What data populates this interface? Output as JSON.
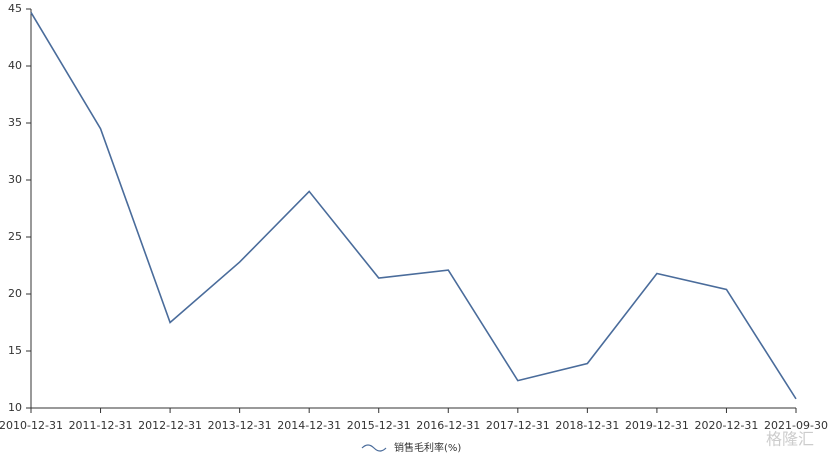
{
  "chart_data": {
    "type": "line",
    "categories": [
      "2010-12-31",
      "2011-12-31",
      "2012-12-31",
      "2013-12-31",
      "2014-12-31",
      "2015-12-31",
      "2016-12-31",
      "2017-12-31",
      "2018-12-31",
      "2019-12-31",
      "2020-12-31",
      "2021-09-30"
    ],
    "series": [
      {
        "name": "销售毛利率(%)",
        "color": "#4a6c9b",
        "values": [
          44.7,
          34.5,
          17.5,
          22.8,
          29.0,
          21.4,
          22.1,
          12.4,
          13.9,
          21.8,
          20.4,
          10.8
        ]
      }
    ],
    "ylim": [
      10,
      45
    ],
    "yticks": [
      10,
      15,
      20,
      25,
      30,
      35,
      40,
      45
    ],
    "legend": "bottom",
    "watermark": "格隆汇"
  }
}
